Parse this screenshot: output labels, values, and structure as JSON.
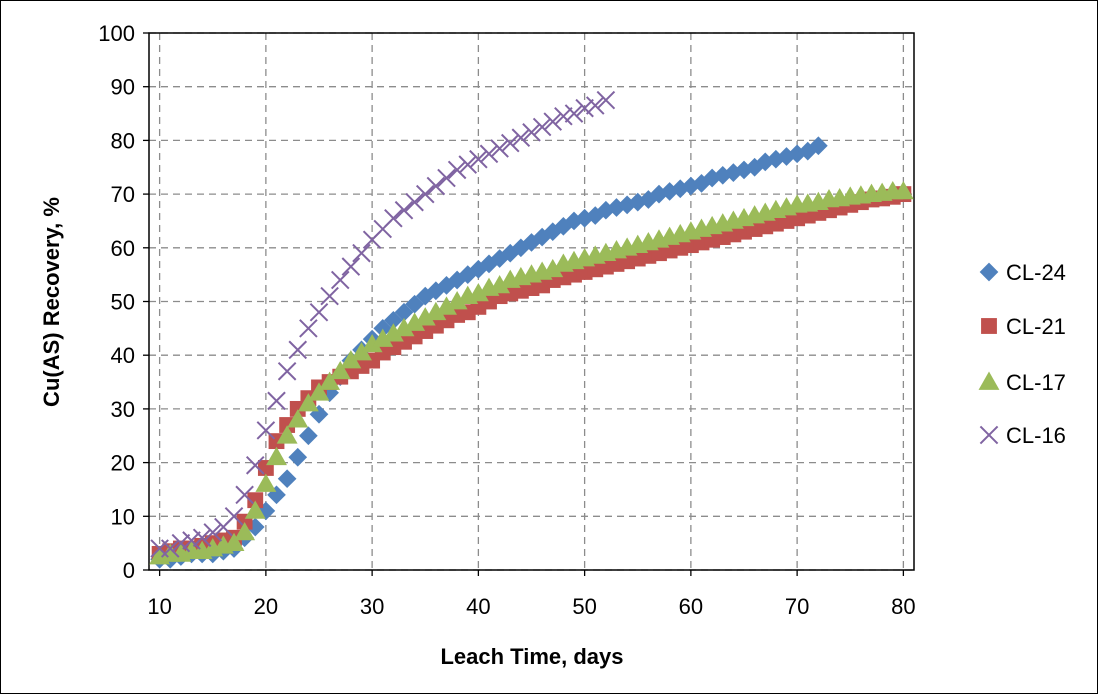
{
  "chart_data": {
    "type": "scatter",
    "title": "",
    "xlabel": "Leach Time, days",
    "ylabel": "Cu(AS) Recovery, %",
    "xlim": [
      9,
      81
    ],
    "ylim": [
      0,
      100
    ],
    "xticks": [
      10,
      20,
      30,
      40,
      50,
      60,
      70,
      80
    ],
    "yticks": [
      0,
      10,
      20,
      30,
      40,
      50,
      60,
      70,
      80,
      90,
      100
    ],
    "grid": true,
    "legend_position": "right",
    "series": [
      {
        "name": "CL-24",
        "marker": "diamond",
        "color": "#4F81BD",
        "x": [
          10,
          11,
          12,
          13,
          14,
          15,
          16,
          17,
          18,
          19,
          20,
          21,
          22,
          23,
          24,
          25,
          26,
          27,
          28,
          29,
          30,
          31,
          32,
          33,
          34,
          35,
          36,
          37,
          38,
          39,
          40,
          41,
          42,
          43,
          44,
          45,
          46,
          47,
          48,
          49,
          50,
          51,
          52,
          53,
          54,
          55,
          56,
          57,
          58,
          59,
          60,
          61,
          62,
          63,
          64,
          65,
          66,
          67,
          68,
          69,
          70,
          71,
          72
        ],
        "y": [
          2,
          2,
          2.5,
          3,
          3,
          3,
          3.5,
          4,
          6,
          8,
          11,
          14,
          17,
          21,
          25,
          29,
          33,
          36,
          39,
          41,
          43,
          45,
          46.5,
          48,
          49.5,
          51,
          52,
          53,
          54,
          55,
          56,
          57,
          58,
          59,
          60,
          61,
          62,
          63,
          64,
          65,
          65.5,
          66,
          67,
          67.5,
          68,
          68.5,
          69,
          70,
          70.5,
          71,
          71.5,
          72,
          73,
          73.5,
          74,
          74.5,
          75,
          76,
          76.5,
          77,
          77.5,
          78,
          79
        ]
      },
      {
        "name": "CL-21",
        "marker": "square",
        "color": "#C0504D",
        "x": [
          10,
          11,
          12,
          13,
          14,
          15,
          16,
          17,
          18,
          19,
          20,
          21,
          22,
          23,
          24,
          25,
          26,
          27,
          28,
          29,
          30,
          31,
          32,
          33,
          34,
          35,
          36,
          37,
          38,
          39,
          40,
          41,
          42,
          43,
          44,
          45,
          46,
          47,
          48,
          49,
          50,
          51,
          52,
          53,
          54,
          55,
          56,
          57,
          58,
          59,
          60,
          61,
          62,
          63,
          64,
          65,
          66,
          67,
          68,
          69,
          70,
          71,
          72,
          73,
          74,
          75,
          76,
          77,
          78,
          79,
          80
        ],
        "y": [
          3,
          3.5,
          4,
          4,
          4.5,
          5,
          5.5,
          6,
          9,
          13,
          19,
          24,
          27,
          30,
          32,
          34,
          35,
          36,
          37,
          38,
          39,
          40.5,
          41.5,
          42.5,
          43.5,
          44.5,
          45.5,
          46.5,
          47.5,
          48,
          49,
          50,
          51,
          51.5,
          52,
          52.5,
          53,
          54,
          54.5,
          55,
          55.5,
          56,
          56.5,
          57,
          57.5,
          58,
          58.5,
          59,
          59.5,
          60,
          60.5,
          61,
          61.5,
          62,
          62.5,
          63,
          63.5,
          64,
          64.5,
          65,
          65.5,
          66,
          66.5,
          67,
          67.5,
          68,
          68.5,
          69,
          69.2,
          69.5,
          70
        ]
      },
      {
        "name": "CL-17",
        "marker": "triangle",
        "color": "#9BBB59",
        "x": [
          10,
          11,
          12,
          13,
          14,
          15,
          16,
          17,
          18,
          19,
          20,
          21,
          22,
          23,
          24,
          25,
          26,
          27,
          28,
          29,
          30,
          31,
          32,
          33,
          34,
          35,
          36,
          37,
          38,
          39,
          40,
          41,
          42,
          43,
          44,
          45,
          46,
          47,
          48,
          49,
          50,
          51,
          52,
          53,
          54,
          55,
          56,
          57,
          58,
          59,
          60,
          61,
          62,
          63,
          64,
          65,
          66,
          67,
          68,
          69,
          70,
          71,
          72,
          73,
          74,
          75,
          76,
          77,
          78,
          79,
          80
        ],
        "y": [
          2.5,
          3,
          3,
          3.5,
          3.5,
          4,
          4.5,
          5,
          7,
          11,
          16,
          21,
          25,
          28,
          31,
          33,
          35,
          37,
          39,
          40.5,
          42,
          43,
          44,
          45,
          46,
          47,
          48,
          49,
          50,
          51,
          51.5,
          52.5,
          53,
          54,
          54.5,
          55,
          55.5,
          56,
          57,
          57.5,
          58,
          58.5,
          59,
          59.5,
          60,
          60.5,
          61,
          61.5,
          62,
          62.5,
          63,
          63.5,
          64,
          64.5,
          65,
          65.5,
          66,
          66.5,
          67,
          67.5,
          68,
          68.2,
          68.5,
          69,
          69.2,
          69.5,
          69.7,
          70,
          70.2,
          70.5,
          70.5
        ]
      },
      {
        "name": "CL-16",
        "marker": "cross",
        "color": "#8064A2",
        "x": [
          10,
          11,
          12,
          13,
          14,
          15,
          16,
          17,
          18,
          19,
          20,
          21,
          22,
          23,
          24,
          25,
          26,
          27,
          28,
          29,
          30,
          31,
          32,
          33,
          34,
          35,
          36,
          37,
          38,
          39,
          40,
          41,
          42,
          43,
          44,
          45,
          46,
          47,
          48,
          49,
          50,
          51,
          52
        ],
        "y": [
          4,
          4,
          5,
          5.5,
          6,
          7,
          8,
          10,
          14,
          19.5,
          26,
          31.5,
          37,
          41,
          45,
          48,
          51,
          54,
          56.5,
          59,
          61.5,
          63.5,
          65.5,
          67,
          68.5,
          70,
          71.5,
          73,
          74.5,
          75.5,
          76.5,
          77.5,
          78.5,
          79.5,
          80.5,
          81.5,
          82.5,
          83.5,
          84.5,
          85,
          86,
          86.5,
          87.5
        ]
      }
    ]
  }
}
